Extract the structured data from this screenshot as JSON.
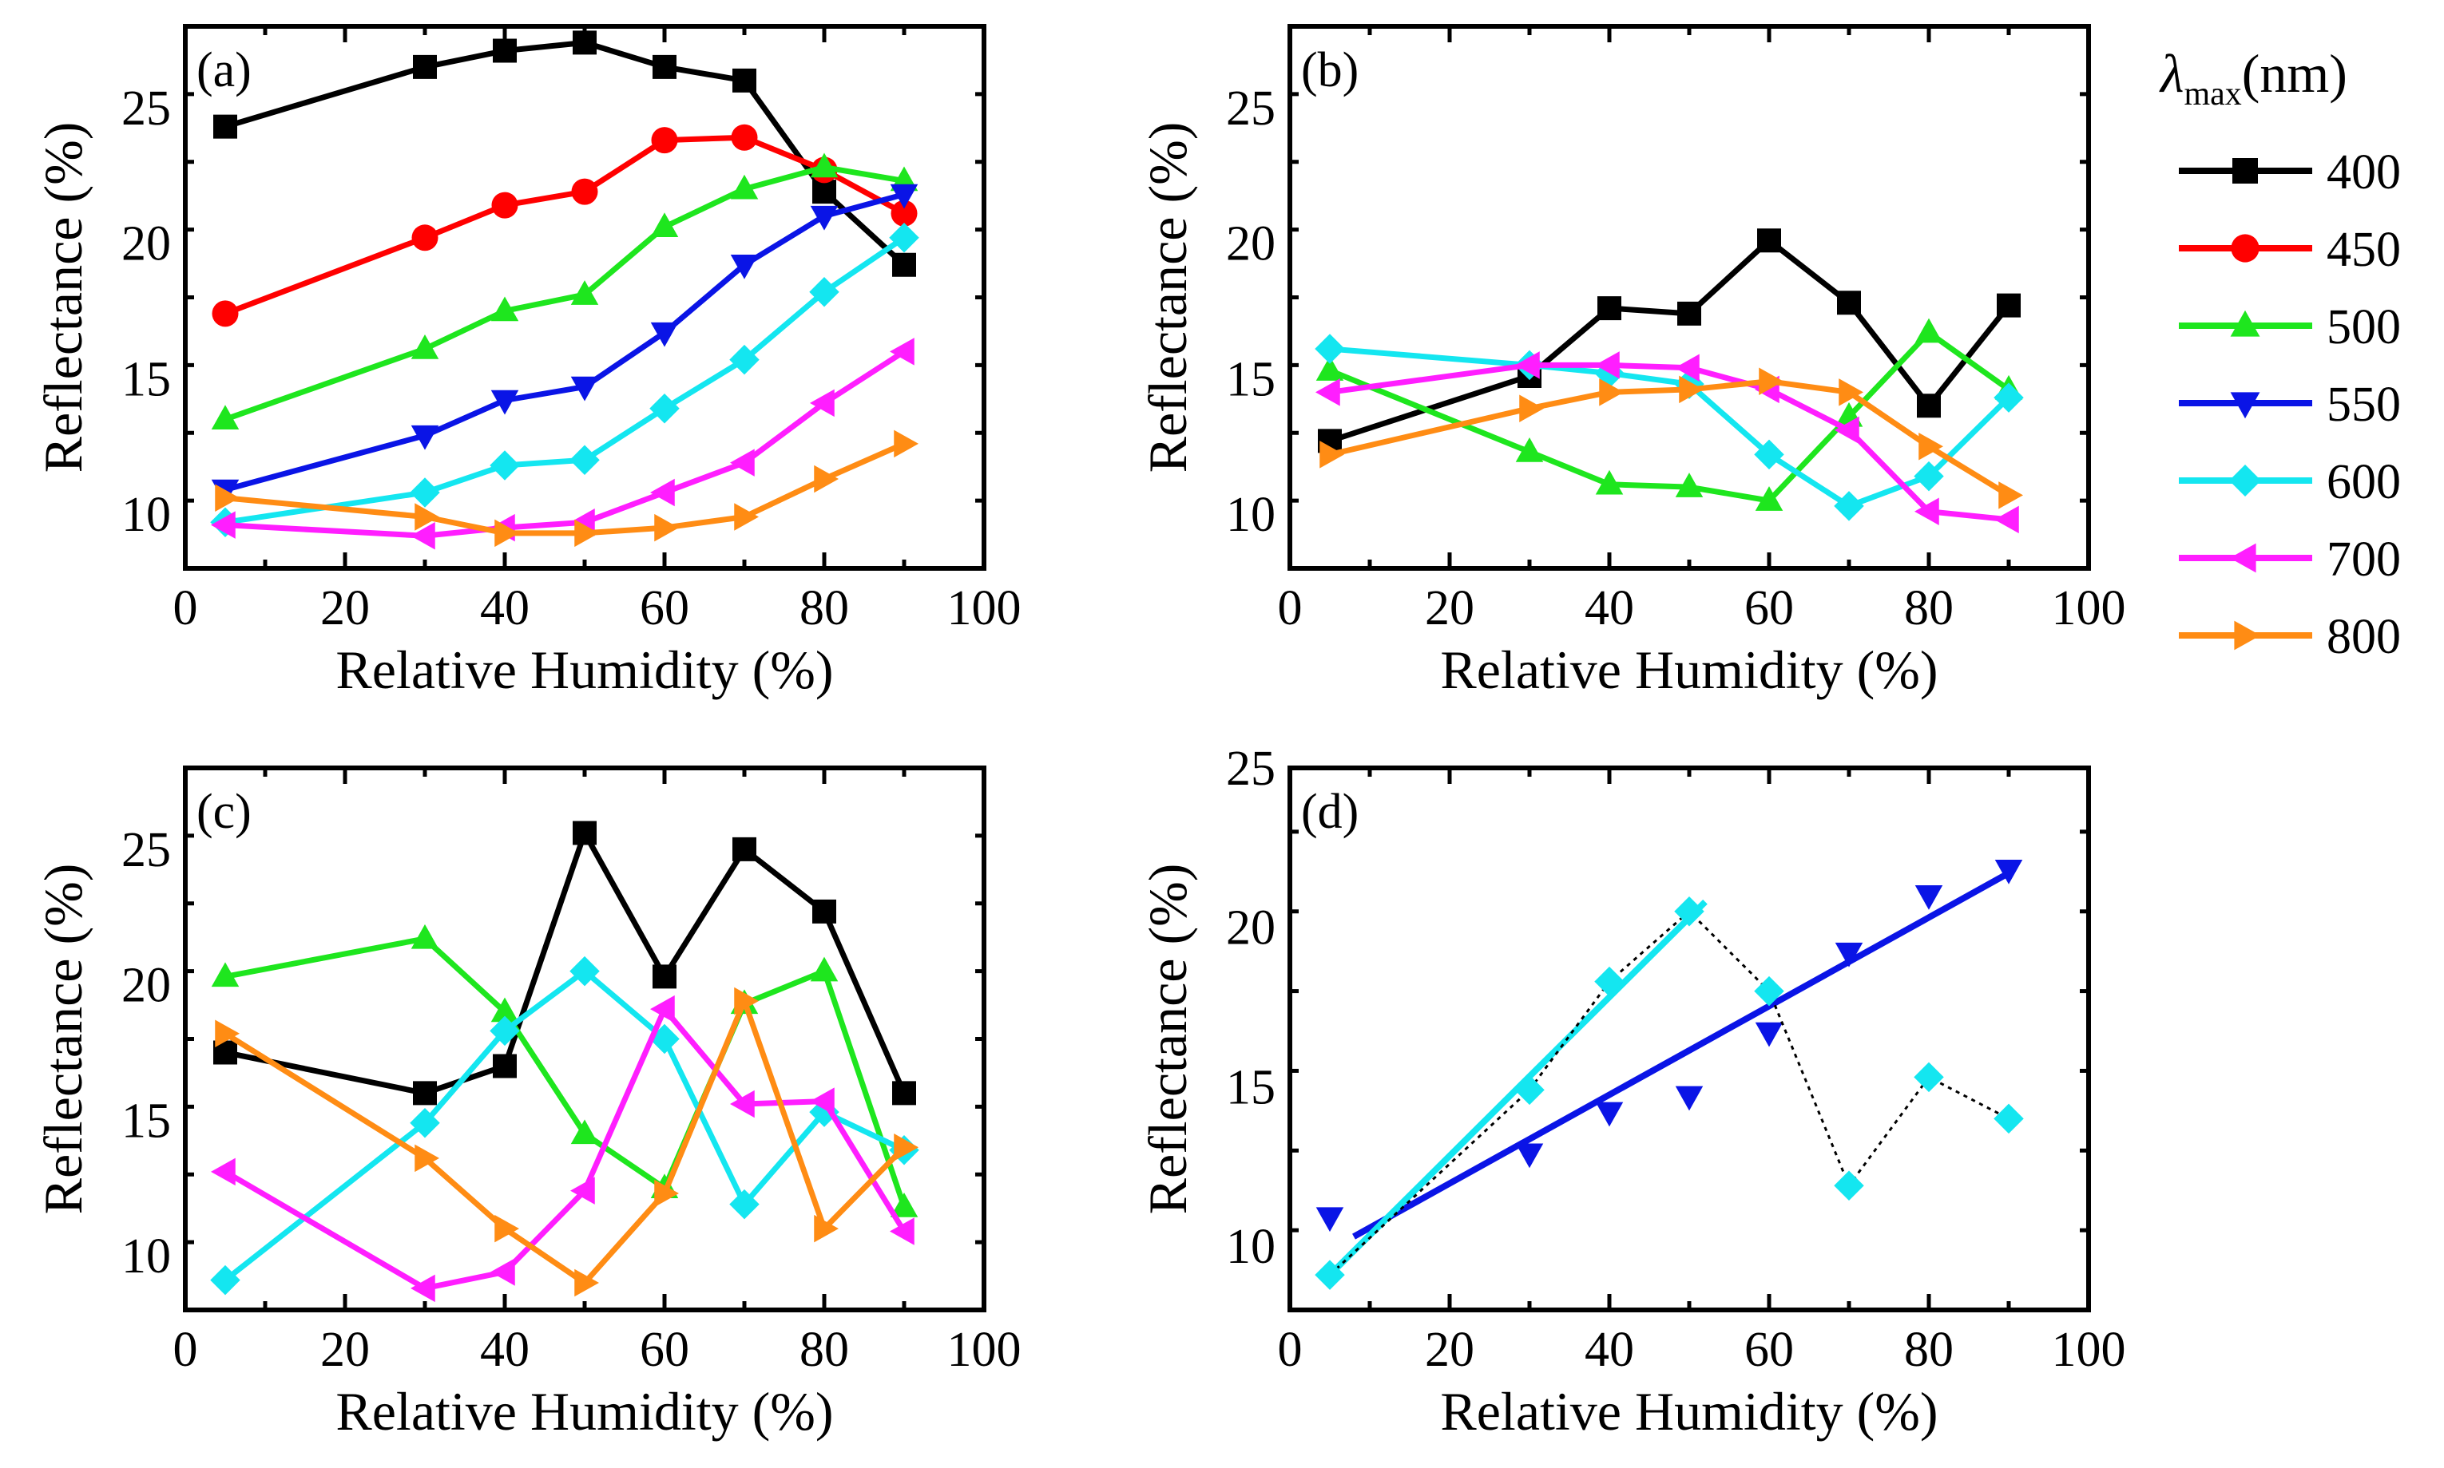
{
  "figure": {
    "legend": {
      "title_symbol": "λ",
      "title_subscript": "max",
      "title_unit": "(nm)"
    },
    "colors": {
      "400": "#000000",
      "450": "#ff0000",
      "500": "#1ee61e",
      "550": "#0a14e6",
      "600": "#14e6f0",
      "700": "#ff1eff",
      "800": "#ff8c14",
      "fit_dotted": "#000000"
    }
  },
  "chart_data": [
    {
      "id": "a",
      "type": "line",
      "panel_label": "(a)",
      "xlabel": "Relative Humidity (%)",
      "ylabel": "Reflectance (%)",
      "xlim": [
        0,
        100
      ],
      "ylim": [
        8,
        28
      ],
      "xticks": [
        0,
        20,
        40,
        60,
        80,
        100
      ],
      "yticks": [
        10,
        15,
        20,
        25
      ],
      "x": [
        5,
        30,
        40,
        50,
        60,
        70,
        80,
        90
      ],
      "series": [
        {
          "name": "400",
          "marker": "square",
          "values": [
            24.3,
            26.5,
            27.1,
            27.4,
            26.5,
            26.0,
            21.9,
            19.2
          ]
        },
        {
          "name": "450",
          "marker": "circle",
          "values": [
            17.4,
            20.2,
            21.4,
            21.9,
            23.8,
            23.9,
            22.7,
            21.1
          ]
        },
        {
          "name": "500",
          "marker": "triangle-up",
          "values": [
            13.5,
            16.1,
            17.5,
            18.1,
            20.6,
            22.0,
            22.8,
            22.3
          ]
        },
        {
          "name": "550",
          "marker": "triangle-down",
          "values": [
            10.9,
            12.9,
            14.2,
            14.7,
            16.7,
            19.2,
            21.0,
            21.8
          ]
        },
        {
          "name": "600",
          "marker": "diamond",
          "values": [
            9.7,
            10.8,
            11.8,
            12.0,
            13.9,
            15.7,
            18.2,
            20.2
          ]
        },
        {
          "name": "700",
          "marker": "triangle-left",
          "values": [
            9.6,
            9.2,
            9.5,
            9.7,
            10.8,
            11.9,
            14.1,
            16.0
          ]
        },
        {
          "name": "800",
          "marker": "triangle-right",
          "values": [
            10.6,
            9.9,
            9.3,
            9.3,
            9.5,
            9.9,
            11.3,
            12.6
          ]
        }
      ]
    },
    {
      "id": "b",
      "type": "line",
      "panel_label": "(b)",
      "xlabel": "Relative Humidity (%)",
      "ylabel": "Reflectance (%)",
      "xlim": [
        0,
        100
      ],
      "ylim": [
        8,
        28
      ],
      "xticks": [
        0,
        20,
        40,
        60,
        80,
        100
      ],
      "yticks": [
        10,
        15,
        20,
        25
      ],
      "x": [
        5,
        30,
        40,
        50,
        60,
        70,
        80,
        90
      ],
      "series": [
        {
          "name": "400",
          "marker": "square",
          "values": [
            12.7,
            15.1,
            17.6,
            17.4,
            20.1,
            17.8,
            14.0,
            17.7
          ]
        },
        {
          "name": "500",
          "marker": "triangle-up",
          "values": [
            15.3,
            12.3,
            11.1,
            11.0,
            10.5,
            13.6,
            16.7,
            14.6
          ]
        },
        {
          "name": "600",
          "marker": "diamond",
          "values": [
            16.1,
            15.5,
            15.2,
            14.8,
            12.2,
            10.3,
            11.4,
            14.3
          ]
        },
        {
          "name": "700",
          "marker": "triangle-left",
          "values": [
            14.5,
            15.5,
            15.5,
            15.4,
            14.6,
            13.1,
            10.1,
            9.8
          ]
        },
        {
          "name": "800",
          "marker": "triangle-right",
          "values": [
            12.2,
            13.9,
            14.5,
            14.6,
            14.9,
            14.5,
            12.5,
            10.7
          ]
        }
      ]
    },
    {
      "id": "c",
      "type": "line",
      "panel_label": "(c)",
      "xlabel": "Relative Humidity (%)",
      "ylabel": "Reflectance (%)",
      "xlim": [
        0,
        100
      ],
      "ylim": [
        8,
        28
      ],
      "xticks": [
        0,
        20,
        40,
        60,
        80,
        100
      ],
      "yticks": [
        10,
        15,
        20,
        25
      ],
      "x": [
        5,
        30,
        40,
        50,
        60,
        70,
        80,
        90
      ],
      "series": [
        {
          "name": "400",
          "marker": "square",
          "values": [
            17.5,
            16.0,
            17.0,
            25.6,
            20.3,
            25.0,
            22.7,
            16.0
          ]
        },
        {
          "name": "500",
          "marker": "triangle-up",
          "values": [
            20.3,
            21.7,
            19.0,
            14.5,
            12.5,
            19.3,
            20.5,
            11.8
          ]
        },
        {
          "name": "600",
          "marker": "diamond",
          "values": [
            9.1,
            14.9,
            18.3,
            20.5,
            18.0,
            11.9,
            15.3,
            13.9
          ]
        },
        {
          "name": "700",
          "marker": "triangle-left",
          "values": [
            13.1,
            8.8,
            9.4,
            12.4,
            19.1,
            15.6,
            15.7,
            10.9
          ]
        },
        {
          "name": "800",
          "marker": "triangle-right",
          "values": [
            18.2,
            13.6,
            11.0,
            9.0,
            12.3,
            19.4,
            11.0,
            14.0
          ]
        }
      ]
    },
    {
      "id": "d",
      "type": "scatter",
      "panel_label": "(d)",
      "xlabel": "Relative Humidity (%)",
      "ylabel": "Reflectance (%)",
      "xlim": [
        0,
        100
      ],
      "ylim": [
        8,
        25
      ],
      "xticks": [
        0,
        20,
        40,
        60,
        80,
        100
      ],
      "yticks": [
        10,
        15,
        20,
        25
      ],
      "x": [
        5,
        30,
        40,
        50,
        60,
        70,
        80,
        90
      ],
      "series": [
        {
          "name": "550",
          "marker": "triangle-down",
          "values": [
            10.9,
            12.9,
            14.2,
            14.7,
            16.7,
            19.2,
            21.0,
            21.8
          ]
        },
        {
          "name": "600",
          "marker": "diamond",
          "values": [
            9.1,
            14.9,
            18.3,
            20.5,
            18.0,
            11.9,
            15.3,
            14.0
          ],
          "connector": "dotted"
        }
      ],
      "fits": [
        {
          "name": "550 fit",
          "color_key": "550",
          "x": [
            8,
            90
          ],
          "y": [
            10.3,
            21.7
          ]
        },
        {
          "name": "600 fit",
          "color_key": "600",
          "x": [
            5,
            52
          ],
          "y": [
            9.1,
            20.8
          ]
        }
      ]
    }
  ],
  "legend_entries": [
    {
      "label": "400",
      "marker": "square"
    },
    {
      "label": "450",
      "marker": "circle"
    },
    {
      "label": "500",
      "marker": "triangle-up"
    },
    {
      "label": "550",
      "marker": "triangle-down"
    },
    {
      "label": "600",
      "marker": "diamond"
    },
    {
      "label": "700",
      "marker": "triangle-left"
    },
    {
      "label": "800",
      "marker": "triangle-right"
    }
  ]
}
